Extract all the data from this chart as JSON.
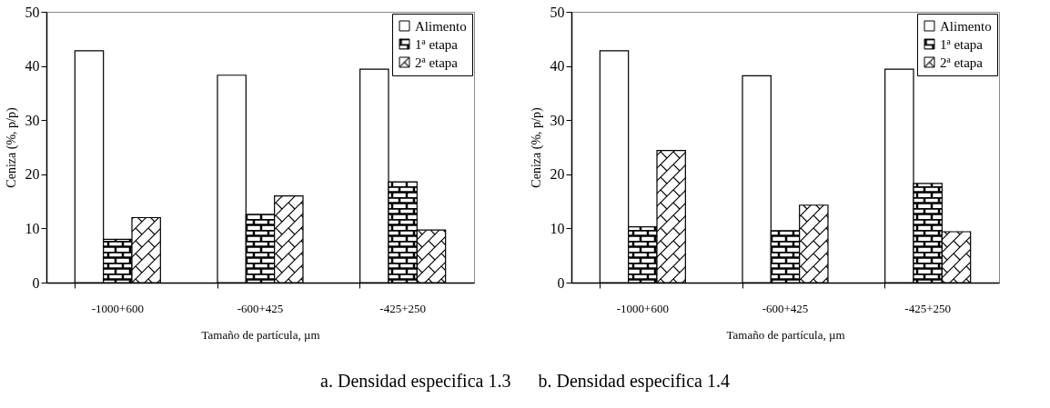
{
  "chart_data": [
    {
      "type": "bar",
      "xlabel": "Tamaño de partícula, µm",
      "ylabel": "Ceniza (%, p/p)",
      "categories": [
        "-1000+600",
        "-600+425",
        "-425+250"
      ],
      "ylim": [
        0,
        50
      ],
      "yticks": [
        0,
        10,
        20,
        30,
        40,
        50
      ],
      "legend": "top right",
      "annotations": [
        "a. Densidad especifica 1.3"
      ],
      "series": [
        {
          "name": "Alimento",
          "color": "#ffffff",
          "values": [
            42.8,
            38.3,
            39.4
          ]
        },
        {
          "name": "1ª etapa",
          "color": "#000000",
          "values": [
            8.0,
            12.6,
            18.6
          ]
        },
        {
          "name": "2ª etapa",
          "color": "#000000",
          "values": [
            12.0,
            16.0,
            9.7
          ]
        }
      ]
    },
    {
      "type": "bar",
      "xlabel": "Tamaño de partícula, µm",
      "ylabel": "Ceniza (%, p/p)",
      "categories": [
        "-1000+600",
        "-600+425",
        "-425+250"
      ],
      "ylim": [
        0,
        50
      ],
      "yticks": [
        0,
        10,
        20,
        30,
        40,
        50
      ],
      "legend": "top right",
      "annotations": [
        "b. Densidad especifica 1.4"
      ],
      "series": [
        {
          "name": "Alimento",
          "color": "#ffffff",
          "values": [
            42.8,
            38.2,
            39.4
          ]
        },
        {
          "name": "1ª etapa",
          "color": "#000000",
          "values": [
            10.3,
            9.6,
            18.3
          ]
        },
        {
          "name": "2ª etapa",
          "color": "#000000",
          "values": [
            24.4,
            14.3,
            9.4
          ]
        }
      ]
    }
  ]
}
